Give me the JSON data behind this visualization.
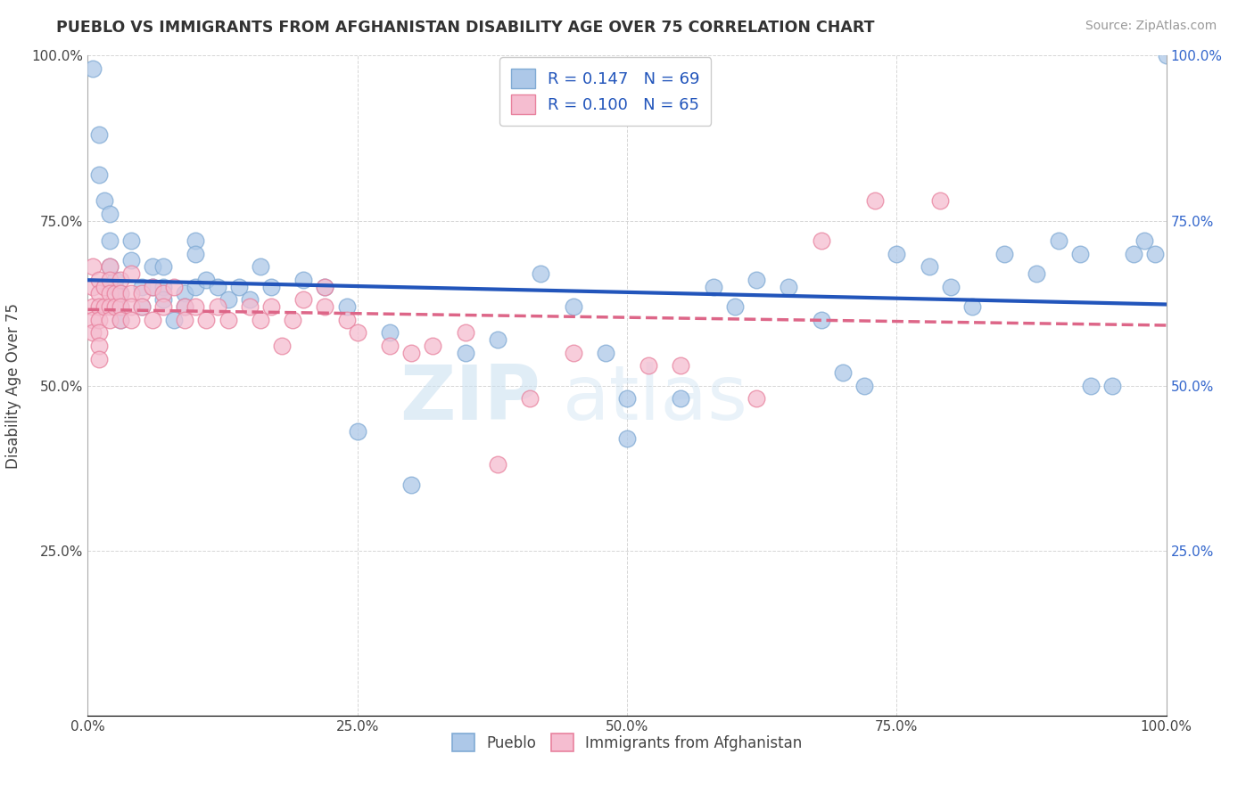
{
  "title": "PUEBLO VS IMMIGRANTS FROM AFGHANISTAN DISABILITY AGE OVER 75 CORRELATION CHART",
  "source": "Source: ZipAtlas.com",
  "ylabel": "Disability Age Over 75",
  "xlim": [
    0.0,
    1.0
  ],
  "ylim": [
    0.0,
    1.0
  ],
  "x_tick_labels": [
    "0.0%",
    "25.0%",
    "50.0%",
    "75.0%",
    "100.0%"
  ],
  "x_tick_pos": [
    0.0,
    0.25,
    0.5,
    0.75,
    1.0
  ],
  "y_tick_labels": [
    "25.0%",
    "50.0%",
    "75.0%",
    "100.0%"
  ],
  "y_tick_pos": [
    0.25,
    0.5,
    0.75,
    1.0
  ],
  "pueblo_color": "#adc8e8",
  "pueblo_edge_color": "#80aad4",
  "afghanistan_color": "#f5bdd0",
  "afghanistan_edge_color": "#e8829e",
  "pueblo_line_color": "#2255bb",
  "afghanistan_line_color": "#dd6688",
  "legend_r_pueblo": "R = 0.147",
  "legend_n_pueblo": "N = 69",
  "legend_r_afghanistan": "R = 0.100",
  "legend_n_afghanistan": "N = 65",
  "watermark_zip": "ZIP",
  "watermark_atlas": "atlas",
  "pueblo_points_x": [
    0.005,
    0.01,
    0.01,
    0.015,
    0.02,
    0.02,
    0.02,
    0.025,
    0.025,
    0.03,
    0.03,
    0.03,
    0.04,
    0.04,
    0.05,
    0.05,
    0.06,
    0.06,
    0.07,
    0.07,
    0.07,
    0.08,
    0.09,
    0.09,
    0.1,
    0.1,
    0.1,
    0.11,
    0.12,
    0.13,
    0.14,
    0.15,
    0.16,
    0.17,
    0.2,
    0.22,
    0.24,
    0.28,
    0.35,
    0.38,
    0.42,
    0.45,
    0.48,
    0.5,
    0.55,
    0.58,
    0.6,
    0.62,
    0.65,
    0.68,
    0.7,
    0.72,
    0.75,
    0.78,
    0.8,
    0.82,
    0.85,
    0.88,
    0.9,
    0.92,
    0.93,
    0.95,
    0.97,
    0.98,
    0.99,
    1.0,
    0.5,
    0.25,
    0.3
  ],
  "pueblo_points_y": [
    0.98,
    0.88,
    0.82,
    0.78,
    0.76,
    0.72,
    0.68,
    0.66,
    0.65,
    0.64,
    0.62,
    0.6,
    0.72,
    0.69,
    0.65,
    0.62,
    0.68,
    0.65,
    0.68,
    0.65,
    0.63,
    0.6,
    0.64,
    0.62,
    0.72,
    0.7,
    0.65,
    0.66,
    0.65,
    0.63,
    0.65,
    0.63,
    0.68,
    0.65,
    0.66,
    0.65,
    0.62,
    0.58,
    0.55,
    0.57,
    0.67,
    0.62,
    0.55,
    0.48,
    0.48,
    0.65,
    0.62,
    0.66,
    0.65,
    0.6,
    0.52,
    0.5,
    0.7,
    0.68,
    0.65,
    0.62,
    0.7,
    0.67,
    0.72,
    0.7,
    0.5,
    0.5,
    0.7,
    0.72,
    0.7,
    1.0,
    0.42,
    0.43,
    0.35
  ],
  "afghanistan_points_x": [
    0.005,
    0.005,
    0.005,
    0.005,
    0.005,
    0.01,
    0.01,
    0.01,
    0.01,
    0.01,
    0.01,
    0.01,
    0.015,
    0.015,
    0.02,
    0.02,
    0.02,
    0.02,
    0.02,
    0.025,
    0.025,
    0.03,
    0.03,
    0.03,
    0.03,
    0.04,
    0.04,
    0.04,
    0.04,
    0.05,
    0.05,
    0.06,
    0.06,
    0.07,
    0.07,
    0.08,
    0.09,
    0.09,
    0.1,
    0.11,
    0.12,
    0.13,
    0.15,
    0.16,
    0.17,
    0.19,
    0.2,
    0.22,
    0.24,
    0.25,
    0.28,
    0.3,
    0.18,
    0.22,
    0.32,
    0.35,
    0.38,
    0.41,
    0.45,
    0.52,
    0.55,
    0.62,
    0.68,
    0.73,
    0.79
  ],
  "afghanistan_points_y": [
    0.68,
    0.65,
    0.62,
    0.6,
    0.58,
    0.66,
    0.64,
    0.62,
    0.6,
    0.58,
    0.56,
    0.54,
    0.65,
    0.62,
    0.68,
    0.66,
    0.64,
    0.62,
    0.6,
    0.64,
    0.62,
    0.66,
    0.64,
    0.62,
    0.6,
    0.67,
    0.64,
    0.62,
    0.6,
    0.64,
    0.62,
    0.65,
    0.6,
    0.64,
    0.62,
    0.65,
    0.62,
    0.6,
    0.62,
    0.6,
    0.62,
    0.6,
    0.62,
    0.6,
    0.62,
    0.6,
    0.63,
    0.62,
    0.6,
    0.58,
    0.56,
    0.55,
    0.56,
    0.65,
    0.56,
    0.58,
    0.38,
    0.48,
    0.55,
    0.53,
    0.53,
    0.48,
    0.72,
    0.78,
    0.78
  ]
}
